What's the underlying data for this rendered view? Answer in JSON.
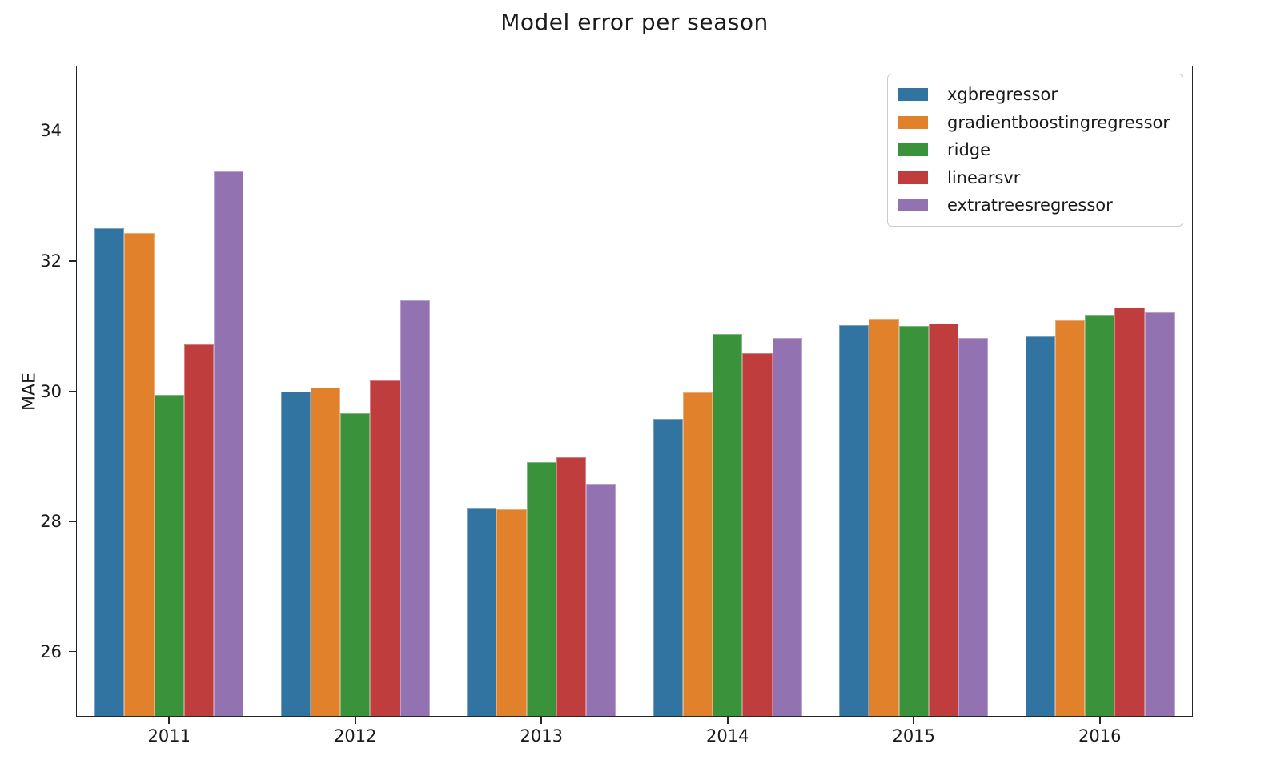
{
  "chart_data": {
    "type": "bar",
    "title": "Model error per season",
    "xlabel": "",
    "ylabel": "MAE",
    "categories": [
      "2011",
      "2012",
      "2013",
      "2014",
      "2015",
      "2016"
    ],
    "series": [
      {
        "name": "xgbregressor",
        "color": "#3274a1",
        "values": [
          32.5,
          30.0,
          28.21,
          29.58,
          31.02,
          30.84
        ]
      },
      {
        "name": "gradientboostingregressor",
        "color": "#e1812c",
        "values": [
          32.43,
          30.05,
          28.18,
          29.98,
          31.11,
          31.09
        ]
      },
      {
        "name": "ridge",
        "color": "#3a923a",
        "values": [
          29.95,
          29.66,
          28.91,
          30.88,
          31.0,
          31.18
        ]
      },
      {
        "name": "linearsvr",
        "color": "#c03d3e",
        "values": [
          30.72,
          30.17,
          28.99,
          30.58,
          31.04,
          31.28
        ]
      },
      {
        "name": "extratreesregressor",
        "color": "#9372b2",
        "values": [
          33.38,
          31.4,
          28.58,
          30.82,
          30.82,
          31.21
        ]
      }
    ],
    "ylim": [
      25,
      35
    ],
    "yticks": [
      26,
      28,
      30,
      32,
      34
    ],
    "legend_position": "upper right",
    "grid": false,
    "background_color": "#ffffff",
    "axis_color": "#262626",
    "bar_group_width_fraction": 0.8
  }
}
